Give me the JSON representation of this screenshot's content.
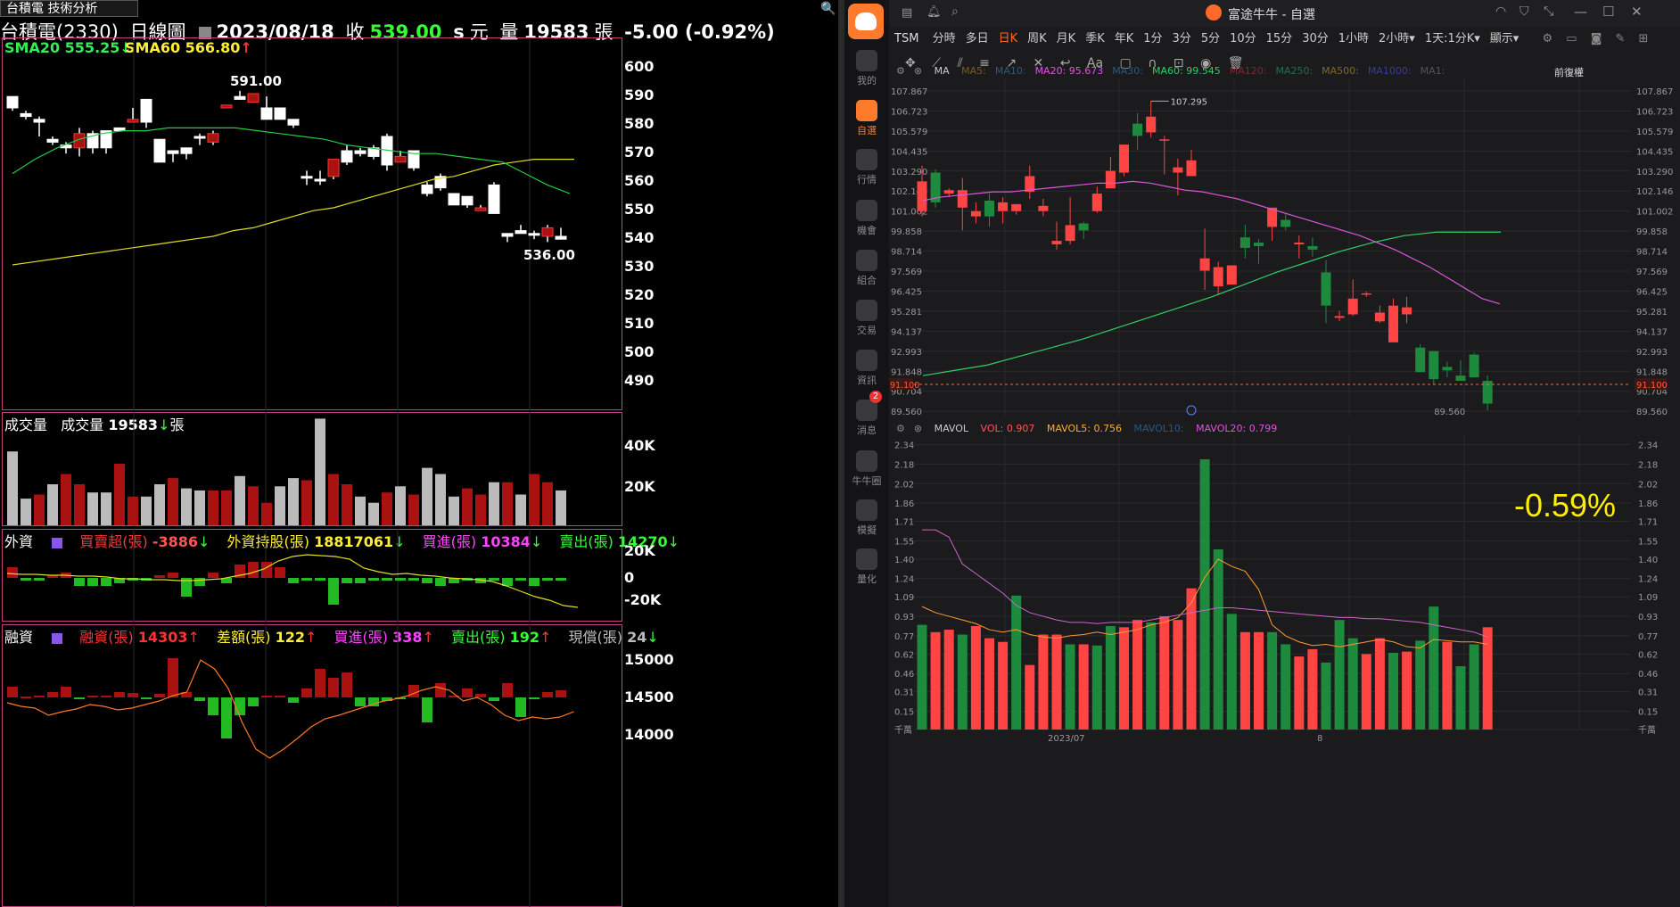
{
  "left": {
    "tab_label": "台積電 技術分析",
    "header": {
      "name": "台積電(2330)",
      "period": "日線圖",
      "date": "2023/08/18",
      "close_label": "收",
      "close": "539.00",
      "close_flag": "s",
      "currency": "元",
      "volume_label": "量",
      "volume": "19583",
      "volume_unit": "張",
      "change": "-5.00 (-0.92%)"
    },
    "price_legend": {
      "sma20": "SMA20 555.25",
      "sma20_arrow": "↓",
      "sma60": "SMA60 566.80",
      "sma60_arrow": "↑"
    },
    "price_axis": [
      "600",
      "590",
      "580",
      "570",
      "560",
      "550",
      "540",
      "530",
      "520",
      "510",
      "500",
      "490"
    ],
    "high_label": "591.00",
    "low_label": "536.00",
    "vol_legend": {
      "title": "成交量",
      "label": "成交量",
      "value": "19583",
      "arrow": "↓",
      "unit": "張"
    },
    "vol_axis": [
      "40K",
      "20K"
    ],
    "foreign": {
      "title": "外資",
      "net_label": "買賣超(張)",
      "net": "-3886",
      "net_arrow": "↓",
      "hold_label": "外資持股(張)",
      "hold": "18817061",
      "hold_arrow": "↓",
      "buy_label": "買進(張)",
      "buy": "10384",
      "buy_arrow": "↓",
      "sell_label": "賣出(張)",
      "sell": "14270",
      "sell_arrow": "↓",
      "axis": [
        "20K",
        "0",
        "-20K"
      ]
    },
    "margin": {
      "title": "融資",
      "bal_label": "融資(張)",
      "bal": "14303",
      "bal_arrow": "↑",
      "diff_label": "差額(張)",
      "diff": "122",
      "diff_arrow": "↑",
      "buy_label": "買進(張)",
      "buy": "338",
      "buy_arrow": "↑",
      "sell_label": "賣出(張)",
      "sell": "192",
      "sell_arrow": "↑",
      "repay_label": "現償(張)",
      "repay": "24",
      "repay_arrow": "↓",
      "axis": [
        "15000",
        "14500",
        "14000"
      ]
    },
    "colors": {
      "up": "#aa1111",
      "down": "#ffffff",
      "sma20": "#22cc44",
      "sma60": "#dddd22",
      "border": "#c04080"
    }
  },
  "right": {
    "app_title": "富途牛牛 - 自選",
    "sidebar": [
      "我的",
      "自選",
      "行情",
      "機會",
      "組合",
      "交易",
      "資訊",
      "消息",
      "牛牛圈",
      "模擬",
      "量化"
    ],
    "sidebar_badge": "2",
    "symbol": "TSM",
    "periods": [
      "分時",
      "多日",
      "日K",
      "周K",
      "月K",
      "季K",
      "年K",
      "1分",
      "3分",
      "5分",
      "10分",
      "15分",
      "30分",
      "1小時",
      "2小時▾",
      "1天:1分K▾",
      "顯示▾"
    ],
    "active_period": "日K",
    "ma_bar": {
      "label": "MA",
      "items": [
        {
          "name": "MA5:",
          "value": "",
          "color": "#7a5a2a"
        },
        {
          "name": "MA10:",
          "value": "",
          "color": "#2a5a7a"
        },
        {
          "name": "MA20:",
          "value": "95.673",
          "color": "#dd55dd"
        },
        {
          "name": "MA30:",
          "value": "",
          "color": "#2a5a7a"
        },
        {
          "name": "MA60:",
          "value": "99.545",
          "color": "#33cc66"
        },
        {
          "name": "MA120:",
          "value": "",
          "color": "#7a2a2a"
        },
        {
          "name": "MA250:",
          "value": "",
          "color": "#2a6a4a"
        },
        {
          "name": "MA500:",
          "value": "",
          "color": "#7a6a2a"
        },
        {
          "name": "MA1000:",
          "value": "",
          "color": "#3a3a9a"
        },
        {
          "name": "MA1:",
          "value": "",
          "color": "#555"
        }
      ],
      "adjust": "前復權"
    },
    "price_axis": [
      "107.867",
      "106.723",
      "105.579",
      "104.435",
      "103.290",
      "102.146",
      "101.002",
      "99.858",
      "98.714",
      "97.569",
      "96.425",
      "95.281",
      "94.137",
      "92.993",
      "91.848",
      "90.704",
      "89.560"
    ],
    "current_price": "91.100",
    "high_mark": "107.295",
    "low_mark": "89.560",
    "vol_bar": {
      "label": "MAVOL",
      "vol": "VOL: 0.907",
      "mavol5": "MAVOL5: 0.756",
      "mavol10": "MAVOL10:",
      "mavol20": "MAVOL20: 0.799"
    },
    "vol_axis": [
      "2.34",
      "2.18",
      "2.02",
      "1.86",
      "1.71",
      "1.55",
      "1.40",
      "1.24",
      "1.09",
      "0.93",
      "0.77",
      "0.62",
      "0.46",
      "0.31",
      "0.15",
      "千萬"
    ],
    "date_labels": [
      "2023/07",
      "8"
    ],
    "pct_change": "-0.59%",
    "colors": {
      "up": "#ff4444",
      "down": "#1e8a3e",
      "ma20": "#dd55dd",
      "ma60": "#33cc66",
      "accent": "#ff6a2a"
    }
  }
}
